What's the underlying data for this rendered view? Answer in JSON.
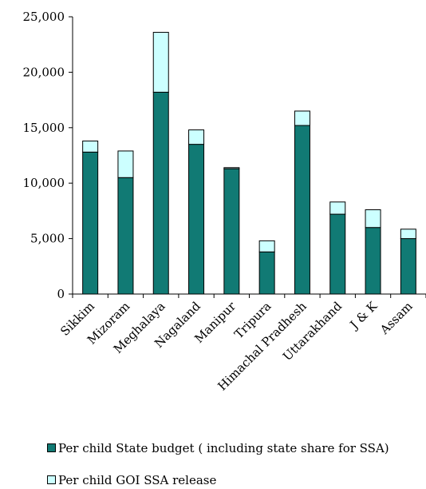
{
  "chart_data": {
    "type": "bar",
    "stacked": true,
    "categories": [
      "Sikkim",
      "Mizoram",
      "Meghalaya",
      "Nagaland",
      "Manipur",
      "Tripura",
      "Himachal Pradhesh",
      "Uttarakhand",
      "J & K",
      "Assam"
    ],
    "series": [
      {
        "name": "Per child State budget ( including state share for SSA)",
        "color": "#117a74",
        "values": [
          12800,
          10500,
          18200,
          13500,
          11300,
          3800,
          15200,
          7200,
          6000,
          5000
        ]
      },
      {
        "name": "Per child GOI SSA release",
        "color": "#ccffff",
        "values": [
          1000,
          2400,
          5400,
          1300,
          100,
          1000,
          1300,
          1100,
          1600,
          850
        ]
      }
    ],
    "yticks": [
      "0",
      "5,000",
      "10,000",
      "15,000",
      "20,000",
      "25,000"
    ],
    "ylim": [
      0,
      25000
    ],
    "grid": false,
    "legend_position": "bottom"
  }
}
